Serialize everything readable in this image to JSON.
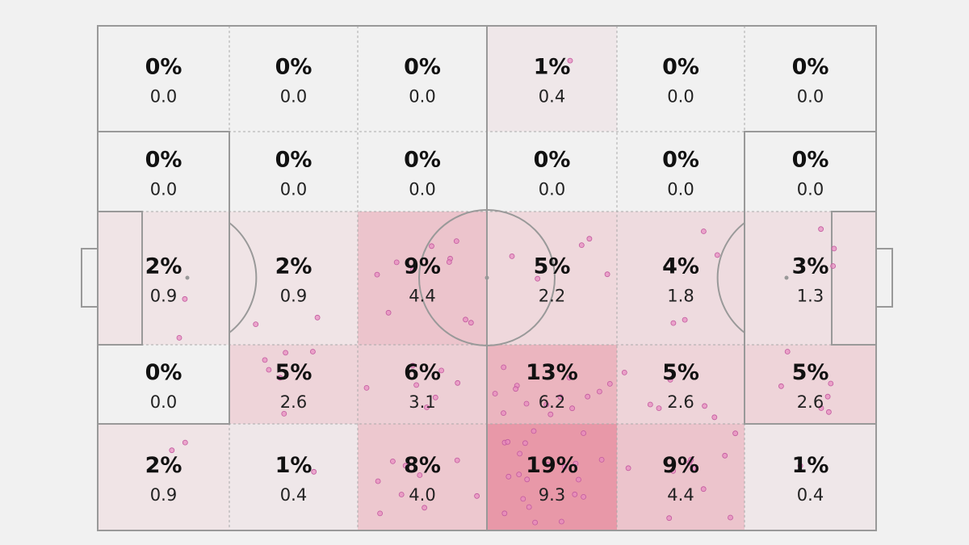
{
  "chart_data": {
    "type": "heatmap",
    "columns": 6,
    "rows": 5,
    "cells": [
      [
        {
          "pct": "0%",
          "value": "0.0"
        },
        {
          "pct": "0%",
          "value": "0.0"
        },
        {
          "pct": "0%",
          "value": "0.0"
        },
        {
          "pct": "1%",
          "value": "0.4"
        },
        {
          "pct": "0%",
          "value": "0.0"
        },
        {
          "pct": "0%",
          "value": "0.0"
        }
      ],
      [
        {
          "pct": "0%",
          "value": "0.0"
        },
        {
          "pct": "0%",
          "value": "0.0"
        },
        {
          "pct": "0%",
          "value": "0.0"
        },
        {
          "pct": "0%",
          "value": "0.0"
        },
        {
          "pct": "0%",
          "value": "0.0"
        },
        {
          "pct": "0%",
          "value": "0.0"
        }
      ],
      [
        {
          "pct": "2%",
          "value": "0.9"
        },
        {
          "pct": "2%",
          "value": "0.9"
        },
        {
          "pct": "9%",
          "value": "4.4"
        },
        {
          "pct": "5%",
          "value": "2.2"
        },
        {
          "pct": "4%",
          "value": "1.8"
        },
        {
          "pct": "3%",
          "value": "1.3"
        }
      ],
      [
        {
          "pct": "0%",
          "value": "0.0"
        },
        {
          "pct": "5%",
          "value": "2.6"
        },
        {
          "pct": "6%",
          "value": "3.1"
        },
        {
          "pct": "13%",
          "value": "6.2"
        },
        {
          "pct": "5%",
          "value": "2.6"
        },
        {
          "pct": "5%",
          "value": "2.6"
        }
      ],
      [
        {
          "pct": "2%",
          "value": "0.9"
        },
        {
          "pct": "1%",
          "value": "0.4"
        },
        {
          "pct": "8%",
          "value": "4.0"
        },
        {
          "pct": "19%",
          "value": "9.3"
        },
        {
          "pct": "9%",
          "value": "4.4"
        },
        {
          "pct": "1%",
          "value": "0.4"
        }
      ]
    ],
    "points_per_cell": [
      [
        0,
        0,
        0,
        1,
        0,
        0
      ],
      [
        0,
        0,
        0,
        0,
        0,
        0
      ],
      [
        2,
        2,
        10,
        5,
        4,
        3
      ],
      [
        0,
        6,
        7,
        14,
        6,
        6
      ],
      [
        2,
        1,
        9,
        21,
        10,
        1
      ]
    ],
    "grid": false,
    "colors": {
      "background": "#f1f1f1",
      "heat": "#e0405f",
      "point_fill": "#e88ac0",
      "point_stroke": "#c25a9e",
      "lines": "#999999"
    }
  }
}
